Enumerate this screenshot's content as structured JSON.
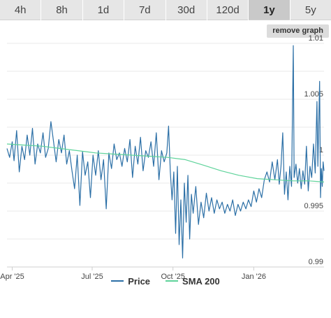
{
  "tabs": [
    {
      "label": "4h",
      "active": false
    },
    {
      "label": "8h",
      "active": false
    },
    {
      "label": "1d",
      "active": false
    },
    {
      "label": "7d",
      "active": false
    },
    {
      "label": "30d",
      "active": false
    },
    {
      "label": "120d",
      "active": false
    },
    {
      "label": "1y",
      "active": true
    },
    {
      "label": "5y",
      "active": false
    }
  ],
  "remove_graph_label": "remove graph",
  "colors": {
    "price": "#2b6fa6",
    "sma": "#5ed39a",
    "grid": "#e8e8e8"
  },
  "chart_data": {
    "type": "line",
    "title": "",
    "xlabel": "",
    "ylabel": "",
    "x_range": [
      "2025-03-26",
      "2026-03-22"
    ],
    "ylim": [
      0.99,
      1.01
    ],
    "y_ticks": [
      {
        "value": 1.01,
        "label": "1.01"
      },
      {
        "value": 1.005,
        "label": "1.005"
      },
      {
        "value": 1.0,
        "label": "1"
      },
      {
        "value": 0.995,
        "label": "0.995"
      },
      {
        "value": 0.99,
        "label": "0.99"
      }
    ],
    "x_ticks": [
      {
        "date": "2025-04-01",
        "label": "Apr '25"
      },
      {
        "date": "2025-07-01",
        "label": "Jul '25"
      },
      {
        "date": "2025-10-01",
        "label": "Oct '25"
      },
      {
        "date": "2026-01-01",
        "label": "Jan '26"
      }
    ],
    "grid": true,
    "legend_position": "bottom",
    "series": [
      {
        "name": "Price",
        "points": [
          [
            "2025-03-26",
            1.0006
          ],
          [
            "2025-03-29",
            0.9998
          ],
          [
            "2025-04-01",
            1.0012
          ],
          [
            "2025-04-03",
            0.9995
          ],
          [
            "2025-04-06",
            1.0022
          ],
          [
            "2025-04-09",
            0.9985
          ],
          [
            "2025-04-12",
            1.0008
          ],
          [
            "2025-04-15",
            0.9996
          ],
          [
            "2025-04-18",
            1.0018
          ],
          [
            "2025-04-21",
            1.0
          ],
          [
            "2025-04-24",
            1.0024
          ],
          [
            "2025-04-27",
            0.9992
          ],
          [
            "2025-04-30",
            1.001
          ],
          [
            "2025-05-03",
            1.0002
          ],
          [
            "2025-05-06",
            1.002
          ],
          [
            "2025-05-09",
            0.9998
          ],
          [
            "2025-05-12",
            1.0006
          ],
          [
            "2025-05-15",
            1.003
          ],
          [
            "2025-05-18",
            1.0012
          ],
          [
            "2025-05-21",
            0.9994
          ],
          [
            "2025-05-24",
            1.0014
          ],
          [
            "2025-05-27",
            1.0002
          ],
          [
            "2025-05-30",
            1.0018
          ],
          [
            "2025-06-02",
            0.9992
          ],
          [
            "2025-06-05",
            1.0004
          ],
          [
            "2025-06-08",
            0.9986
          ],
          [
            "2025-06-11",
            0.997
          ],
          [
            "2025-06-14",
            1.0
          ],
          [
            "2025-06-17",
            0.9955
          ],
          [
            "2025-06-20",
            1.0003
          ],
          [
            "2025-06-23",
            0.9982
          ],
          [
            "2025-06-26",
            0.9994
          ],
          [
            "2025-06-29",
            0.9962
          ],
          [
            "2025-07-02",
            1.0
          ],
          [
            "2025-07-05",
            0.9982
          ],
          [
            "2025-07-08",
            1.0004
          ],
          [
            "2025-07-11",
            0.9978
          ],
          [
            "2025-07-14",
            0.9996
          ],
          [
            "2025-07-17",
            0.9952
          ],
          [
            "2025-07-20",
            1.0002
          ],
          [
            "2025-07-23",
            0.9988
          ],
          [
            "2025-07-26",
            1.001
          ],
          [
            "2025-07-29",
            0.9996
          ],
          [
            "2025-08-01",
            1.0002
          ],
          [
            "2025-08-04",
            0.999
          ],
          [
            "2025-08-07",
            1.0006
          ],
          [
            "2025-08-10",
            0.9994
          ],
          [
            "2025-08-13",
            1.0014
          ],
          [
            "2025-08-16",
            0.998
          ],
          [
            "2025-08-19",
            1.0008
          ],
          [
            "2025-08-22",
            0.9992
          ],
          [
            "2025-08-25",
            1.0016
          ],
          [
            "2025-08-28",
            0.9986
          ],
          [
            "2025-08-31",
            1.0004
          ],
          [
            "2025-09-03",
            0.9998
          ],
          [
            "2025-09-06",
            1.0012
          ],
          [
            "2025-09-09",
            0.999
          ],
          [
            "2025-09-12",
            1.002
          ],
          [
            "2025-09-15",
            0.9978
          ],
          [
            "2025-09-18",
            1.0004
          ],
          [
            "2025-09-21",
            0.9994
          ],
          [
            "2025-09-24",
            1.0002
          ],
          [
            "2025-09-26",
            1.0026
          ],
          [
            "2025-09-28",
            0.9985
          ],
          [
            "2025-09-30",
            0.996
          ],
          [
            "2025-10-02",
            0.9985
          ],
          [
            "2025-10-04",
            0.993
          ],
          [
            "2025-10-06",
            0.999
          ],
          [
            "2025-10-08",
            0.992
          ],
          [
            "2025-10-10",
            0.996
          ],
          [
            "2025-10-12",
            0.9908
          ],
          [
            "2025-10-14",
            0.9975
          ],
          [
            "2025-10-16",
            0.994
          ],
          [
            "2025-10-18",
            0.9982
          ],
          [
            "2025-10-20",
            0.9925
          ],
          [
            "2025-10-22",
            0.9965
          ],
          [
            "2025-10-24",
            0.9948
          ],
          [
            "2025-10-27",
            0.9972
          ],
          [
            "2025-10-30",
            0.9938
          ],
          [
            "2025-11-02",
            0.9958
          ],
          [
            "2025-11-05",
            0.9944
          ],
          [
            "2025-11-08",
            0.9966
          ],
          [
            "2025-11-11",
            0.995
          ],
          [
            "2025-11-14",
            0.9962
          ],
          [
            "2025-11-17",
            0.9948
          ],
          [
            "2025-11-20",
            0.996
          ],
          [
            "2025-11-23",
            0.9952
          ],
          [
            "2025-11-26",
            0.9958
          ],
          [
            "2025-11-29",
            0.9948
          ],
          [
            "2025-12-02",
            0.9956
          ],
          [
            "2025-12-05",
            0.995
          ],
          [
            "2025-12-08",
            0.996
          ],
          [
            "2025-12-11",
            0.9946
          ],
          [
            "2025-12-14",
            0.9956
          ],
          [
            "2025-12-17",
            0.995
          ],
          [
            "2025-12-20",
            0.9958
          ],
          [
            "2025-12-23",
            0.9952
          ],
          [
            "2025-12-26",
            0.996
          ],
          [
            "2025-12-29",
            0.9954
          ],
          [
            "2026-01-01",
            0.9968
          ],
          [
            "2026-01-04",
            0.9958
          ],
          [
            "2026-01-07",
            0.997
          ],
          [
            "2026-01-10",
            0.9962
          ],
          [
            "2026-01-13",
            0.9978
          ],
          [
            "2026-01-16",
            0.9985
          ],
          [
            "2026-01-19",
            0.9976
          ],
          [
            "2026-01-22",
            0.9994
          ],
          [
            "2026-01-25",
            0.9978
          ],
          [
            "2026-01-28",
            0.9996
          ],
          [
            "2026-01-30",
            0.9974
          ],
          [
            "2026-02-01",
            0.999
          ],
          [
            "2026-02-03",
            1.002
          ],
          [
            "2026-02-05",
            0.9965
          ],
          [
            "2026-02-07",
            0.9985
          ],
          [
            "2026-02-09",
            0.996
          ],
          [
            "2026-02-11",
            0.999
          ],
          [
            "2026-02-13",
            0.9972
          ],
          [
            "2026-02-15",
            1.0098
          ],
          [
            "2026-02-16",
            0.998
          ],
          [
            "2026-02-18",
            0.9992
          ],
          [
            "2026-02-20",
            0.9975
          ],
          [
            "2026-02-22",
            0.9988
          ],
          [
            "2026-02-24",
            0.997
          ],
          [
            "2026-02-26",
            0.9986
          ],
          [
            "2026-02-28",
            0.9974
          ],
          [
            "2026-03-02",
            1.0008
          ],
          [
            "2026-03-04",
            0.9968
          ],
          [
            "2026-03-06",
            0.999
          ],
          [
            "2026-03-08",
            0.998
          ],
          [
            "2026-03-10",
            1.001
          ],
          [
            "2026-03-12",
            0.9984
          ],
          [
            "2026-03-14",
            1.0048
          ],
          [
            "2026-03-15",
            0.999
          ],
          [
            "2026-03-17",
            1.0066
          ],
          [
            "2026-03-18",
            0.9962
          ],
          [
            "2026-03-19",
            0.9988
          ],
          [
            "2026-03-20",
            0.9972
          ],
          [
            "2026-03-21",
            0.9994
          ],
          [
            "2026-03-22",
            0.9986
          ]
        ]
      },
      {
        "name": "SMA 200",
        "points": [
          [
            "2025-03-26",
            1.001
          ],
          [
            "2025-04-15",
            1.0009
          ],
          [
            "2025-05-05",
            1.0008
          ],
          [
            "2025-05-25",
            1.0006
          ],
          [
            "2025-06-15",
            1.0004
          ],
          [
            "2025-07-05",
            1.0002
          ],
          [
            "2025-07-25",
            1.0001
          ],
          [
            "2025-08-15",
            1.0
          ],
          [
            "2025-09-05",
            0.9999
          ],
          [
            "2025-09-25",
            0.9998
          ],
          [
            "2025-10-15",
            0.9996
          ],
          [
            "2025-11-05",
            0.9991
          ],
          [
            "2025-11-25",
            0.9986
          ],
          [
            "2025-12-15",
            0.9982
          ],
          [
            "2026-01-05",
            0.9979
          ],
          [
            "2026-01-25",
            0.9978
          ],
          [
            "2026-02-15",
            0.9977
          ],
          [
            "2026-03-05",
            0.9977
          ],
          [
            "2026-03-22",
            0.9976
          ]
        ]
      }
    ]
  }
}
